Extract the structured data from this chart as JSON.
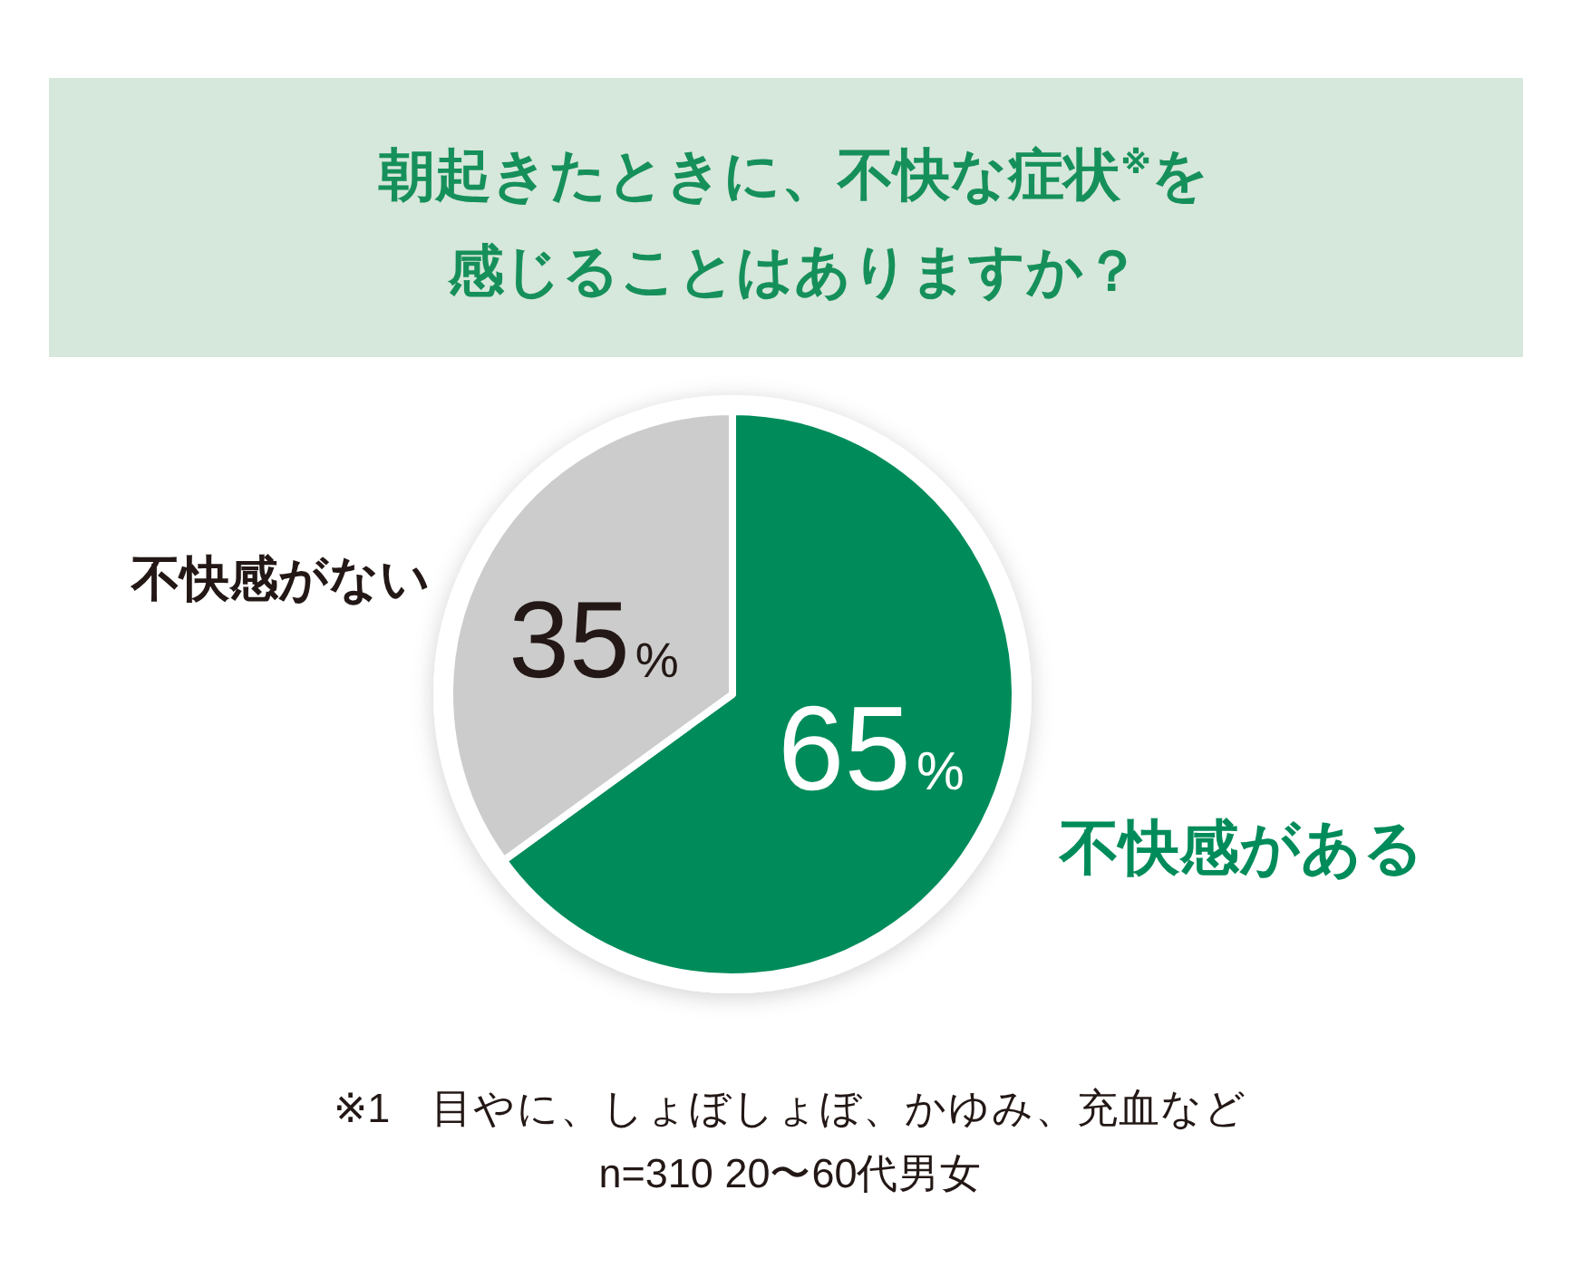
{
  "chart_data": {
    "type": "pie",
    "title": "朝起きたときに、不快な症状$^{※}$を感じることはありますか？",
    "categories": [
      "不快感がある",
      "不快感がない"
    ],
    "values": [
      65,
      35
    ],
    "colors": [
      "#008c5a",
      "#cccccc"
    ],
    "value_labels": [
      "65%",
      "35%"
    ],
    "annotations": [
      "※1　目やに、しょぼしょぼ、かゆみ、充血など",
      "n=310 20〜60代男女"
    ]
  }
}
